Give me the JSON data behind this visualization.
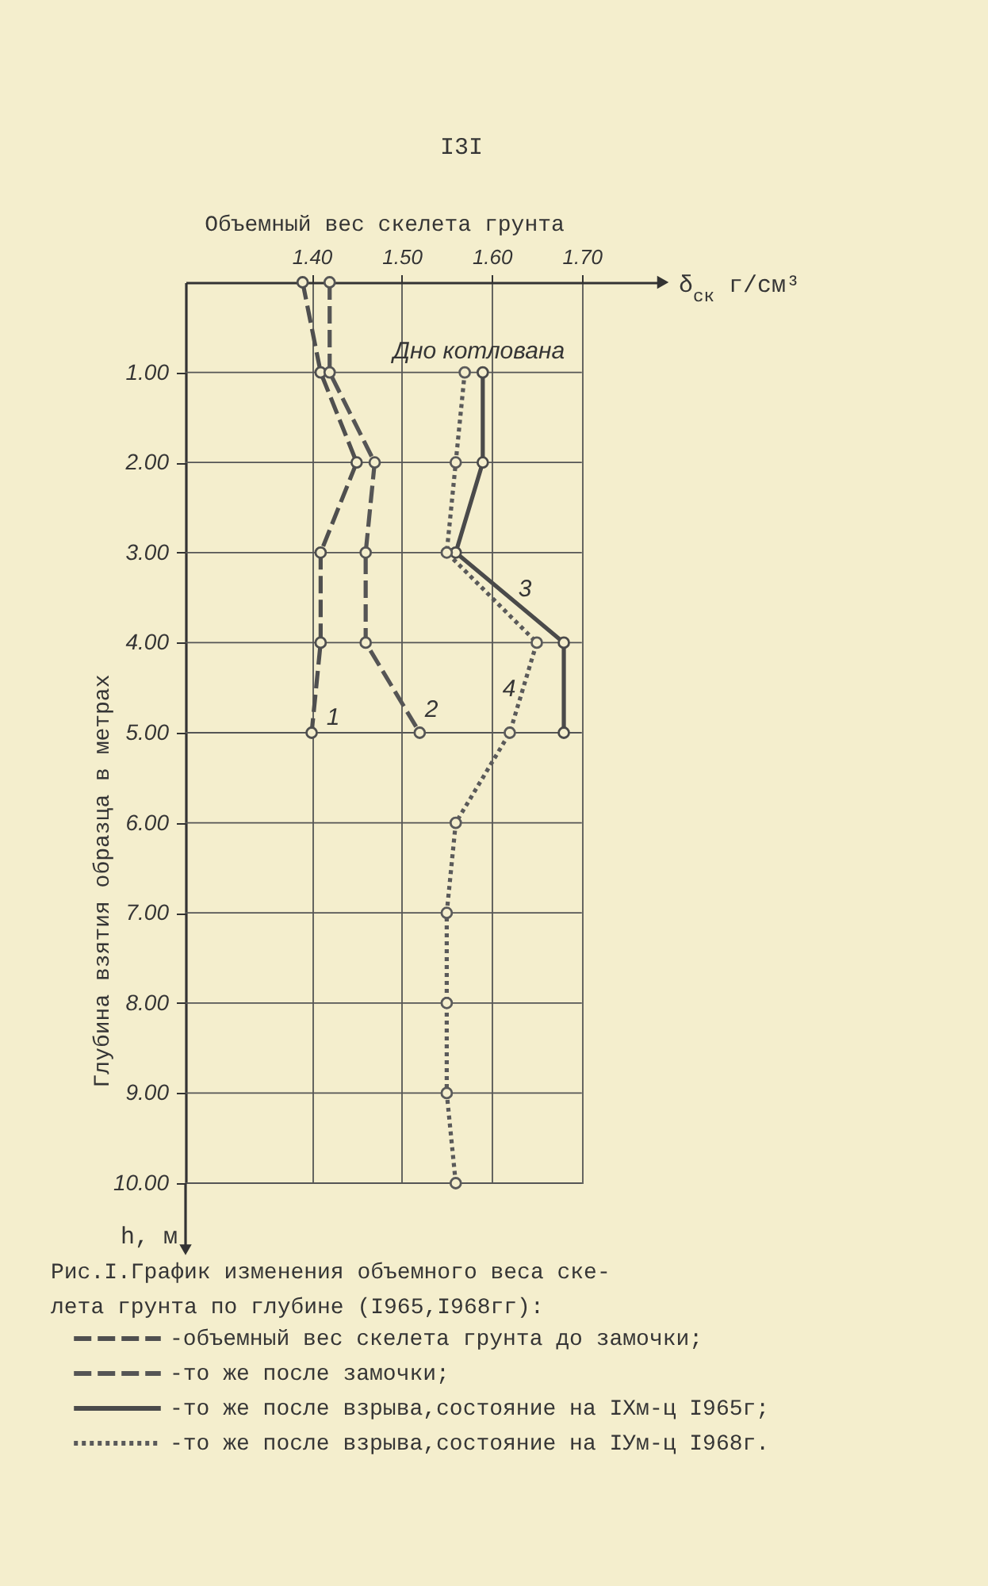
{
  "chart_data": {
    "type": "line",
    "xlabel": "Объемный вес скелета грунта",
    "ylabel": "Глубина взятия образца в метрах",
    "annotations": [
      "I3I",
      "Рис.I.График изменения объемного веса ске-\nлета грунта по глубине (I965,I968гг):",
      "δ$_{ск}$  г/см³",
      "h, м",
      "Дно котлована",
      "1",
      "2",
      "3",
      "4"
    ],
    "series": [
      {
        "name": "-объемный вес скелета грунта до замочки;",
        "color": "#4f4f4f",
        "line_style": "dashed",
        "x": [
          1.39,
          1.41,
          1.45,
          1.41,
          1.41,
          1.4
        ],
        "values": [
          0,
          1,
          2,
          3,
          4,
          5
        ]
      },
      {
        "name": "-то же после замочки;",
        "color": "#555555",
        "line_style": "dashed",
        "x": [
          1.42,
          1.42,
          1.47,
          1.46,
          1.46,
          1.52
        ],
        "values": [
          0,
          1,
          2,
          3,
          4,
          5
        ]
      },
      {
        "name": "-то же после взрыва,состояние на IХм-ц I965г;",
        "color": "#4a4a4a",
        "line_style": "solid",
        "x": [
          1.59,
          1.59,
          1.56,
          1.68,
          1.68
        ],
        "values": [
          1,
          2,
          3,
          4,
          5
        ]
      },
      {
        "name": "-то же после взрыва,состояние на IУм-ц I968г.",
        "color": "#5a5a5a",
        "line_style": "dotted",
        "x": [
          1.57,
          1.56,
          1.55,
          1.65,
          1.62,
          1.56,
          1.55,
          1.55,
          1.55,
          1.56
        ],
        "values": [
          1,
          2,
          3,
          4,
          5,
          6,
          7,
          8,
          9,
          10
        ]
      }
    ],
    "xlim": [
      1.26,
      1.79
    ],
    "xticks": [
      {
        "value": 1.4,
        "label": "1.40"
      },
      {
        "value": 1.5,
        "label": "1.50"
      },
      {
        "value": 1.6,
        "label": "1.60"
      },
      {
        "value": 1.7,
        "label": "1.70"
      }
    ],
    "ylim": [
      10,
      0
    ],
    "yticks": [
      {
        "value": 1,
        "label": "1.00"
      },
      {
        "value": 2,
        "label": "2.00"
      },
      {
        "value": 3,
        "label": "3.00"
      },
      {
        "value": 4,
        "label": "4.00"
      },
      {
        "value": 5,
        "label": "5.00"
      },
      {
        "value": 6,
        "label": "6.00"
      },
      {
        "value": 7,
        "label": "7.00"
      },
      {
        "value": 8,
        "label": "8.00"
      },
      {
        "value": 9,
        "label": "9.00"
      },
      {
        "value": 10,
        "label": "10.00"
      }
    ],
    "grid": true,
    "legend": "bottom",
    "marker": "circle"
  }
}
